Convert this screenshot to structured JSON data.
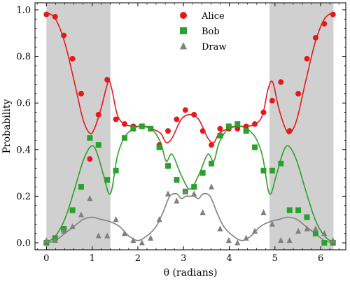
{
  "chart_data": {
    "type": "scatter",
    "title": "",
    "xlabel": "θ (radians)",
    "ylabel": "Probability",
    "xlim": [
      -0.25,
      6.55
    ],
    "ylim": [
      -0.03,
      1.03
    ],
    "xticks": [
      0,
      1,
      2,
      3,
      4,
      5,
      6
    ],
    "yticks": [
      0.0,
      0.2,
      0.4,
      0.6,
      0.8,
      1.0
    ],
    "ytick_labels": [
      "0.0",
      "0.2",
      "0.4",
      "0.6",
      "0.8",
      "1.0"
    ],
    "grid": false,
    "legend_position": "top-center",
    "shaded_regions": [
      {
        "x0": 0.0,
        "x1": 1.4,
        "color": "#d0d0d0"
      },
      {
        "x0": 4.88,
        "x1": 6.28,
        "color": "#d0d0d0"
      }
    ],
    "series": [
      {
        "name": "Alice",
        "marker": "circle",
        "color": "#e31a1c",
        "x": [
          0.0,
          0.19,
          0.38,
          0.57,
          0.76,
          0.95,
          1.14,
          1.33,
          1.52,
          1.71,
          1.9,
          2.09,
          2.28,
          2.47,
          2.66,
          2.85,
          3.04,
          3.23,
          3.42,
          3.61,
          3.8,
          3.99,
          4.18,
          4.37,
          4.56,
          4.75,
          4.94,
          5.13,
          5.32,
          5.51,
          5.7,
          5.89,
          6.08,
          6.27
        ],
        "y": [
          0.98,
          0.97,
          0.89,
          0.79,
          0.64,
          0.36,
          0.55,
          0.7,
          0.53,
          0.51,
          0.5,
          0.5,
          0.49,
          0.42,
          0.48,
          0.53,
          0.57,
          0.55,
          0.48,
          0.42,
          0.49,
          0.49,
          0.49,
          0.5,
          0.51,
          0.56,
          0.61,
          0.69,
          0.48,
          0.64,
          0.79,
          0.88,
          0.94,
          0.98
        ]
      },
      {
        "name": "Bob",
        "marker": "square",
        "color": "#2ca02c",
        "x": [
          0.0,
          0.19,
          0.38,
          0.57,
          0.76,
          0.95,
          1.14,
          1.33,
          1.52,
          1.71,
          1.9,
          2.09,
          2.28,
          2.47,
          2.66,
          2.85,
          3.04,
          3.23,
          3.42,
          3.61,
          3.8,
          3.99,
          4.18,
          4.37,
          4.56,
          4.75,
          4.94,
          5.13,
          5.32,
          5.51,
          5.7,
          5.89,
          6.08,
          6.27
        ],
        "y": [
          0.0,
          0.02,
          0.06,
          0.14,
          0.24,
          0.45,
          0.42,
          0.27,
          0.31,
          0.45,
          0.49,
          0.5,
          0.49,
          0.41,
          0.33,
          0.27,
          0.22,
          0.24,
          0.3,
          0.34,
          0.46,
          0.5,
          0.51,
          0.48,
          0.41,
          0.31,
          0.31,
          0.34,
          0.14,
          0.14,
          0.11,
          0.04,
          0.0,
          0.0
        ]
      },
      {
        "name": "Draw",
        "marker": "triangle",
        "color": "#808080",
        "x": [
          0.0,
          0.19,
          0.38,
          0.57,
          0.76,
          0.95,
          1.14,
          1.33,
          1.52,
          1.71,
          1.9,
          2.09,
          2.28,
          2.47,
          2.66,
          2.85,
          3.04,
          3.23,
          3.42,
          3.61,
          3.8,
          3.99,
          4.18,
          4.37,
          4.56,
          4.75,
          4.94,
          5.13,
          5.32,
          5.51,
          5.7,
          5.89,
          6.08,
          6.27
        ],
        "y": [
          0.01,
          0.01,
          0.05,
          0.07,
          0.12,
          0.19,
          0.03,
          0.03,
          0.1,
          0.04,
          0.01,
          0.0,
          0.02,
          0.1,
          0.21,
          0.18,
          0.22,
          0.21,
          0.13,
          0.24,
          0.06,
          0.01,
          0.0,
          0.02,
          0.05,
          0.13,
          0.08,
          0.01,
          0.01,
          0.05,
          0.06,
          0.06,
          0.04,
          0.01
        ]
      }
    ],
    "fit_curves": [
      {
        "color": "#e31a1c",
        "x": [
          0.0,
          0.2,
          0.4,
          0.6,
          0.8,
          0.95,
          1.05,
          1.2,
          1.35,
          1.43,
          1.55,
          1.7,
          1.9,
          2.1,
          2.3,
          2.5,
          2.62,
          2.75,
          2.95,
          3.14,
          3.33,
          3.53,
          3.66,
          3.78,
          3.98,
          4.18,
          4.38,
          4.58,
          4.73,
          4.85,
          4.95,
          5.08,
          5.23,
          5.33,
          5.48,
          5.68,
          5.88,
          6.08,
          6.28
        ],
        "y": [
          0.99,
          0.96,
          0.86,
          0.7,
          0.53,
          0.47,
          0.49,
          0.58,
          0.69,
          0.66,
          0.55,
          0.51,
          0.5,
          0.5,
          0.49,
          0.47,
          0.43,
          0.45,
          0.53,
          0.55,
          0.53,
          0.45,
          0.43,
          0.47,
          0.49,
          0.5,
          0.5,
          0.51,
          0.55,
          0.66,
          0.69,
          0.58,
          0.49,
          0.47,
          0.53,
          0.7,
          0.86,
          0.96,
          0.99
        ]
      },
      {
        "color": "#2ca02c",
        "x": [
          0.0,
          0.2,
          0.4,
          0.6,
          0.8,
          0.95,
          1.05,
          1.15,
          1.25,
          1.4,
          1.55,
          1.7,
          1.9,
          2.1,
          2.3,
          2.5,
          2.62,
          2.75,
          2.95,
          3.14,
          3.33,
          3.53,
          3.66,
          3.78,
          3.98,
          4.18,
          4.38,
          4.58,
          4.73,
          4.88,
          5.03,
          5.13,
          5.23,
          5.33,
          5.48,
          5.68,
          5.88,
          6.08,
          6.28
        ],
        "y": [
          0.0,
          0.03,
          0.1,
          0.22,
          0.35,
          0.41,
          0.41,
          0.36,
          0.29,
          0.21,
          0.37,
          0.45,
          0.49,
          0.5,
          0.49,
          0.43,
          0.35,
          0.38,
          0.29,
          0.23,
          0.29,
          0.38,
          0.35,
          0.43,
          0.49,
          0.5,
          0.49,
          0.45,
          0.37,
          0.21,
          0.29,
          0.36,
          0.41,
          0.41,
          0.35,
          0.22,
          0.1,
          0.03,
          0.0
        ]
      },
      {
        "color": "#808080",
        "x": [
          0.0,
          0.2,
          0.4,
          0.6,
          0.8,
          1.0,
          1.2,
          1.4,
          1.6,
          1.8,
          2.0,
          2.2,
          2.4,
          2.55,
          2.7,
          2.85,
          2.95,
          3.05,
          3.14,
          3.23,
          3.33,
          3.43,
          3.58,
          3.73,
          3.88,
          4.08,
          4.28,
          4.48,
          4.68,
          4.88,
          5.08,
          5.28,
          5.48,
          5.68,
          5.88,
          6.08,
          6.28
        ],
        "y": [
          0.0,
          0.01,
          0.04,
          0.07,
          0.1,
          0.11,
          0.1,
          0.09,
          0.07,
          0.03,
          0.01,
          0.03,
          0.07,
          0.13,
          0.2,
          0.21,
          0.19,
          0.2,
          0.2,
          0.2,
          0.19,
          0.21,
          0.2,
          0.13,
          0.07,
          0.03,
          0.01,
          0.03,
          0.07,
          0.09,
          0.1,
          0.11,
          0.1,
          0.07,
          0.04,
          0.01,
          0.0
        ]
      }
    ]
  }
}
